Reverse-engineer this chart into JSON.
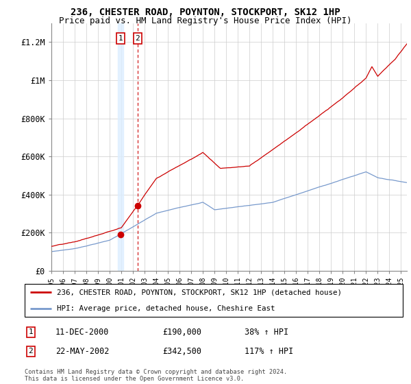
{
  "title": "236, CHESTER ROAD, POYNTON, STOCKPORT, SK12 1HP",
  "subtitle": "Price paid vs. HM Land Registry's House Price Index (HPI)",
  "ylim": [
    0,
    1300000
  ],
  "yticks": [
    0,
    200000,
    400000,
    600000,
    800000,
    1000000,
    1200000
  ],
  "ytick_labels": [
    "£0",
    "£200K",
    "£400K",
    "£600K",
    "£800K",
    "£1M",
    "£1.2M"
  ],
  "xmin": 1995.0,
  "xmax": 2025.5,
  "sale1_x": 2000.94,
  "sale1_y": 190000,
  "sale2_x": 2002.39,
  "sale2_y": 342500,
  "sale1_date": "11-DEC-2000",
  "sale1_price": "£190,000",
  "sale1_hpi": "38% ↑ HPI",
  "sale2_date": "22-MAY-2002",
  "sale2_price": "£342,500",
  "sale2_hpi": "117% ↑ HPI",
  "line1_color": "#cc0000",
  "line2_color": "#7799cc",
  "marker_color": "#cc0000",
  "shading_color": "#ddeeff",
  "legend_line1": "236, CHESTER ROAD, POYNTON, STOCKPORT, SK12 1HP (detached house)",
  "legend_line2": "HPI: Average price, detached house, Cheshire East",
  "footer": "Contains HM Land Registry data © Crown copyright and database right 2024.\nThis data is licensed under the Open Government Licence v3.0.",
  "grid_color": "#cccccc",
  "title_fontsize": 10,
  "subtitle_fontsize": 9,
  "tick_fontsize": 8.5
}
